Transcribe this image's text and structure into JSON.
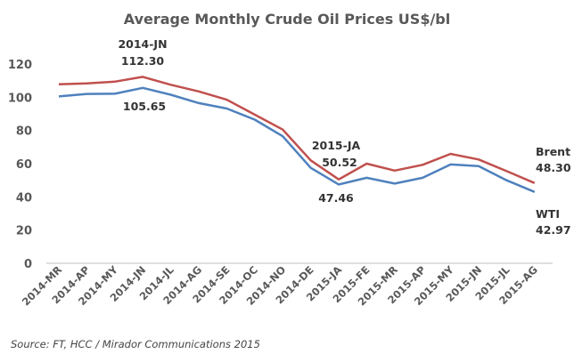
{
  "chart_data": {
    "type": "line",
    "title": "Average Monthly Crude Oil Prices US$/bl",
    "categories": [
      "2014-MR",
      "2014-AP",
      "2014-MY",
      "2014-JN",
      "2014-JL",
      "2014-AG",
      "2014-SE",
      "2014-OC",
      "2014-NO",
      "2014-DE",
      "2015-JA",
      "2015-FE",
      "2015-MR",
      "2015-AP",
      "2015-MY",
      "2015-JN",
      "2015-JL",
      "2015-AG"
    ],
    "ylim": [
      0,
      120
    ],
    "yticks": [
      "0",
      "20",
      "40",
      "60",
      "80",
      "100",
      "120"
    ],
    "grid": false,
    "colors": {
      "brent": "#c0504d",
      "wti": "#4f81bd"
    },
    "series": [
      {
        "name": "Brent",
        "values": [
          107.8,
          108.3,
          109.4,
          112.3,
          107.5,
          103.5,
          98.5,
          89.5,
          80.5,
          62.0,
          50.52,
          60.0,
          55.8,
          59.3,
          65.9,
          62.5,
          55.5,
          48.3
        ]
      },
      {
        "name": "WTI",
        "values": [
          100.5,
          102.0,
          102.1,
          105.65,
          101.5,
          96.5,
          93.2,
          86.5,
          76.5,
          57.5,
          47.46,
          51.5,
          48.0,
          51.5,
          59.5,
          58.5,
          50.0,
          42.97
        ]
      }
    ],
    "annotations": [
      {
        "id": "jun-period",
        "text": "2014-JN"
      },
      {
        "id": "jun-brent",
        "text": "112.30"
      },
      {
        "id": "jun-wti",
        "text": "105.65"
      },
      {
        "id": "jan-period",
        "text": "2015-JA"
      },
      {
        "id": "jan-brent",
        "text": "50.52"
      },
      {
        "id": "jan-wti",
        "text": "47.46"
      },
      {
        "id": "brent-label",
        "text": "Brent"
      },
      {
        "id": "brent-value",
        "text": "48.30"
      },
      {
        "id": "wti-label",
        "text": "WTI"
      },
      {
        "id": "wti-value",
        "text": "42.97"
      }
    ]
  },
  "source": "Source: FT, HCC / Mirador Communications 2015"
}
